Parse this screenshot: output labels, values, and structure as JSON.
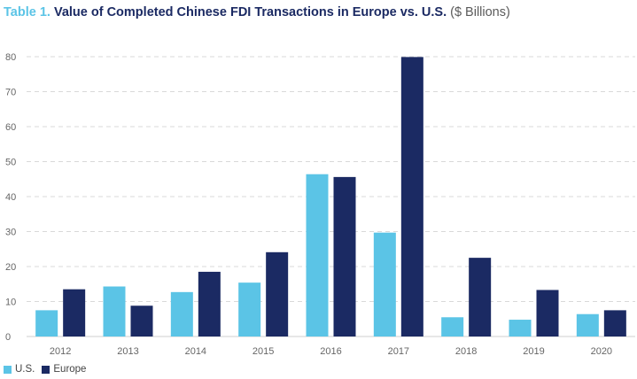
{
  "title": {
    "lead": "Table 1.",
    "main": "Value of Completed Chinese FDI Transactions in Europe vs. U.S.",
    "unit": "($ Billions)"
  },
  "colors": {
    "us": "#5bc4e6",
    "europe": "#1b2a63",
    "grid": "#d9d9d9"
  },
  "chart_data": {
    "type": "bar",
    "title": "Value of Completed Chinese FDI Transactions in Europe vs. U.S. ($ Billions)",
    "xlabel": "",
    "ylabel": "",
    "ylim": [
      0,
      80
    ],
    "yticks": [
      0,
      10,
      20,
      30,
      40,
      50,
      60,
      70,
      80
    ],
    "grid": true,
    "legend_position": "bottom-left",
    "categories": [
      "2012",
      "2013",
      "2014",
      "2015",
      "2016",
      "2017",
      "2018",
      "2019",
      "2020"
    ],
    "series": [
      {
        "name": "U.S.",
        "values": [
          7.5,
          14.3,
          12.7,
          15.4,
          46.4,
          29.7,
          5.5,
          4.8,
          6.4
        ]
      },
      {
        "name": "Europe",
        "values": [
          13.5,
          8.8,
          18.5,
          24.1,
          45.6,
          79.9,
          22.5,
          13.3,
          7.5
        ]
      }
    ]
  }
}
